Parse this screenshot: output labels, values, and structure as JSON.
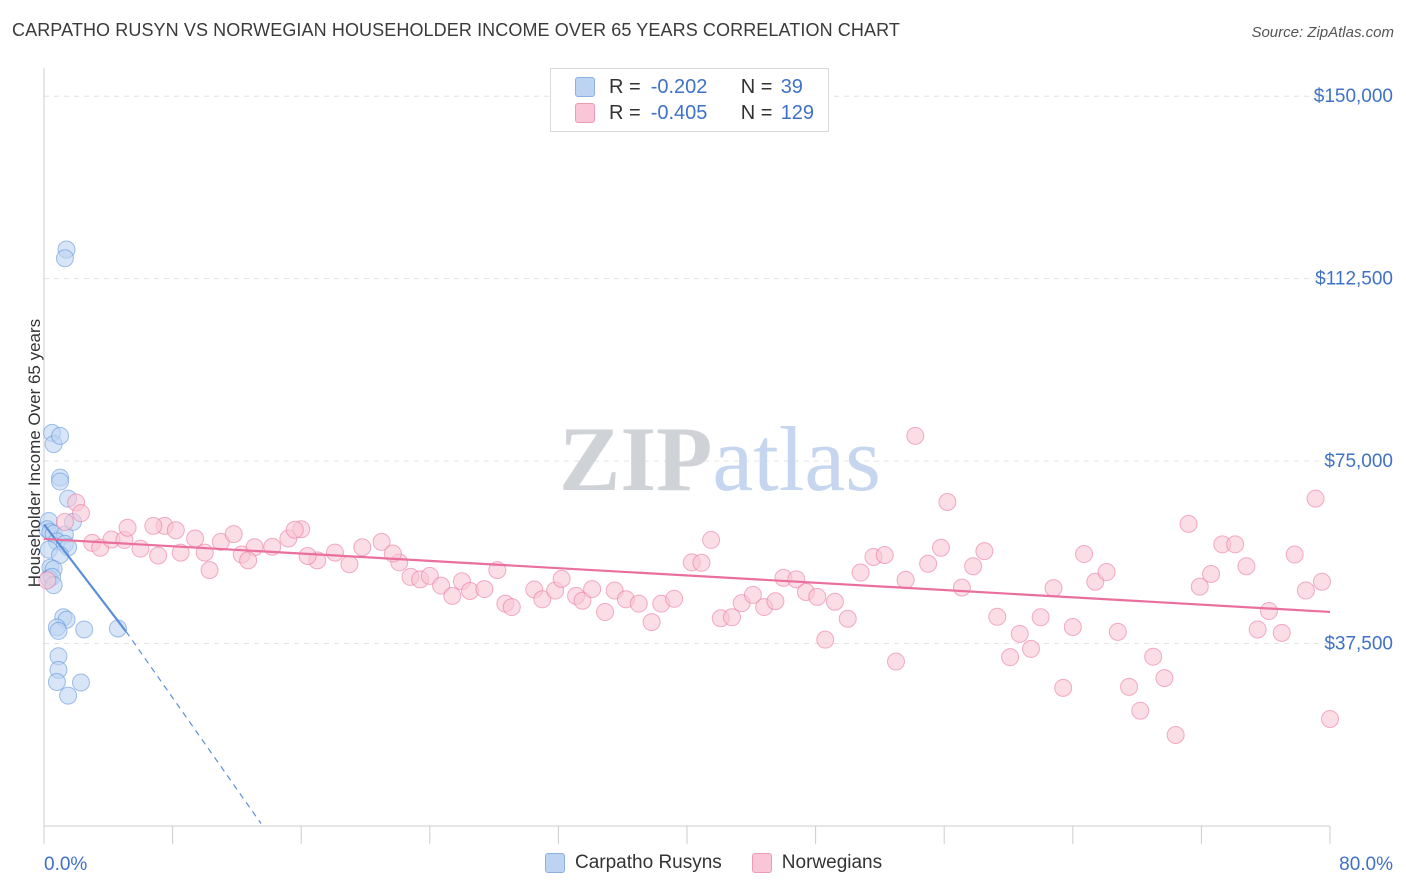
{
  "title": "CARPATHO RUSYN VS NORWEGIAN HOUSEHOLDER INCOME OVER 65 YEARS CORRELATION CHART",
  "source": "Source: ZipAtlas.com",
  "watermark": "ZIPatlas",
  "legend": {
    "rows": [
      {
        "r_label": "R =",
        "r_value": "-0.202",
        "n_label": "N =",
        "n_value": "39",
        "color": "#a9c4ec"
      },
      {
        "r_label": "R =",
        "r_value": "-0.405",
        "n_label": "N =",
        "n_value": "129",
        "color": "#f5b8cb"
      }
    ]
  },
  "bottom_legend": [
    {
      "label": "Carpatho Rusyns",
      "color": "#a9c4ec"
    },
    {
      "label": "Norwegians",
      "color": "#f5b8cb"
    }
  ],
  "chart_data": {
    "type": "scatter",
    "ylabel": "Householder Income Over 65 years",
    "xlabel": "",
    "xlim": [
      0,
      80
    ],
    "ylim": [
      0,
      150000
    ],
    "x_tick_labels": [
      "0.0%",
      "80.0%"
    ],
    "y_tick_labels": [
      "$37,500",
      "$75,000",
      "$112,500",
      "$150,000"
    ],
    "y_ticks": [
      37500,
      75000,
      112500,
      150000
    ],
    "grid": true,
    "series": [
      {
        "name": "Carpatho Rusyns",
        "color": "#5b8fd8",
        "fill": "#bcd3f2",
        "points": [
          [
            1.4,
            118500
          ],
          [
            1.3,
            116700
          ],
          [
            0.5,
            80800
          ],
          [
            0.6,
            78500
          ],
          [
            1.0,
            80200
          ],
          [
            1.0,
            71600
          ],
          [
            1.0,
            70800
          ],
          [
            1.5,
            67300
          ],
          [
            0.3,
            62700
          ],
          [
            0.2,
            61000
          ],
          [
            0.4,
            60400
          ],
          [
            0.6,
            60100
          ],
          [
            1.3,
            59900
          ],
          [
            1.8,
            62500
          ],
          [
            0.8,
            58500
          ],
          [
            1.3,
            58000
          ],
          [
            0.3,
            56800
          ],
          [
            1.5,
            57300
          ],
          [
            1.0,
            55700
          ],
          [
            0.4,
            53100
          ],
          [
            0.6,
            52800
          ],
          [
            0.3,
            50900
          ],
          [
            0.5,
            51200
          ],
          [
            0.6,
            49500
          ],
          [
            1.2,
            42900
          ],
          [
            1.4,
            42400
          ],
          [
            0.8,
            40800
          ],
          [
            0.9,
            40100
          ],
          [
            4.6,
            40600
          ],
          [
            2.5,
            40400
          ],
          [
            0.9,
            34900
          ],
          [
            0.9,
            32100
          ],
          [
            0.8,
            29600
          ],
          [
            2.3,
            29500
          ],
          [
            1.5,
            26800
          ]
        ],
        "trend": {
          "x": [
            0,
            5.1
          ],
          "y": [
            62000,
            40000
          ],
          "dashed_to": [
            13.5,
            500
          ]
        }
      },
      {
        "name": "Norwegians",
        "color": "#e96f9c",
        "fill": "#f8c6d6",
        "points": [
          [
            0.2,
            50500
          ],
          [
            1.3,
            62500
          ],
          [
            2.0,
            66500
          ],
          [
            2.3,
            64300
          ],
          [
            3.0,
            58200
          ],
          [
            3.5,
            57200
          ],
          [
            4.2,
            58900
          ],
          [
            5.0,
            58800
          ],
          [
            6.0,
            57000
          ],
          [
            5.2,
            61300
          ],
          [
            7.5,
            61700
          ],
          [
            8.2,
            60800
          ],
          [
            6.8,
            61700
          ],
          [
            9.4,
            59100
          ],
          [
            7.1,
            55600
          ],
          [
            8.5,
            56200
          ],
          [
            10.0,
            56200
          ],
          [
            11.0,
            58400
          ],
          [
            11.8,
            60000
          ],
          [
            10.3,
            52600
          ],
          [
            12.3,
            55800
          ],
          [
            13.1,
            57300
          ],
          [
            12.7,
            54600
          ],
          [
            14.2,
            57400
          ],
          [
            15.2,
            59100
          ],
          [
            16.0,
            61000
          ],
          [
            15.6,
            60900
          ],
          [
            17.0,
            54600
          ],
          [
            16.4,
            55500
          ],
          [
            18.1,
            56200
          ],
          [
            19.0,
            53800
          ],
          [
            19.8,
            57300
          ],
          [
            21.0,
            58400
          ],
          [
            22.1,
            54200
          ],
          [
            21.7,
            56000
          ],
          [
            22.8,
            51200
          ],
          [
            23.4,
            50700
          ],
          [
            24.0,
            51400
          ],
          [
            24.7,
            49400
          ],
          [
            25.4,
            47300
          ],
          [
            26.0,
            50300
          ],
          [
            26.5,
            48300
          ],
          [
            27.4,
            48700
          ],
          [
            28.2,
            52600
          ],
          [
            28.7,
            45700
          ],
          [
            29.1,
            45000
          ],
          [
            30.5,
            48600
          ],
          [
            31.0,
            46600
          ],
          [
            31.8,
            48400
          ],
          [
            32.2,
            50800
          ],
          [
            33.1,
            47300
          ],
          [
            33.5,
            46300
          ],
          [
            34.1,
            48700
          ],
          [
            34.9,
            44000
          ],
          [
            35.5,
            48400
          ],
          [
            36.2,
            46600
          ],
          [
            37.0,
            45700
          ],
          [
            37.8,
            41900
          ],
          [
            38.4,
            45700
          ],
          [
            39.2,
            46700
          ],
          [
            40.3,
            54200
          ],
          [
            40.9,
            54100
          ],
          [
            41.5,
            58800
          ],
          [
            42.1,
            42700
          ],
          [
            42.8,
            42900
          ],
          [
            43.4,
            45800
          ],
          [
            44.1,
            47500
          ],
          [
            44.8,
            45000
          ],
          [
            45.5,
            46200
          ],
          [
            46.0,
            51000
          ],
          [
            46.8,
            50700
          ],
          [
            47.4,
            48100
          ],
          [
            48.1,
            47100
          ],
          [
            48.6,
            38300
          ],
          [
            49.2,
            46100
          ],
          [
            50.0,
            42600
          ],
          [
            50.8,
            52100
          ],
          [
            51.6,
            55300
          ],
          [
            52.3,
            55700
          ],
          [
            53.0,
            33800
          ],
          [
            53.6,
            50600
          ],
          [
            54.2,
            80200
          ],
          [
            55.0,
            53900
          ],
          [
            55.8,
            57200
          ],
          [
            56.2,
            66600
          ],
          [
            57.1,
            49000
          ],
          [
            57.8,
            53400
          ],
          [
            58.5,
            56500
          ],
          [
            59.3,
            43000
          ],
          [
            60.1,
            34700
          ],
          [
            60.7,
            39500
          ],
          [
            61.4,
            36400
          ],
          [
            62.0,
            42900
          ],
          [
            62.8,
            48900
          ],
          [
            63.4,
            28400
          ],
          [
            64.0,
            40900
          ],
          [
            64.7,
            55900
          ],
          [
            65.4,
            50200
          ],
          [
            66.1,
            52200
          ],
          [
            66.8,
            39900
          ],
          [
            67.5,
            28600
          ],
          [
            68.2,
            23700
          ],
          [
            69.0,
            34800
          ],
          [
            69.7,
            30400
          ],
          [
            70.4,
            18700
          ],
          [
            71.2,
            62100
          ],
          [
            71.9,
            49200
          ],
          [
            72.6,
            51800
          ],
          [
            73.3,
            57900
          ],
          [
            74.1,
            57900
          ],
          [
            74.8,
            53400
          ],
          [
            75.5,
            40400
          ],
          [
            76.2,
            44200
          ],
          [
            77.0,
            39700
          ],
          [
            77.8,
            55800
          ],
          [
            78.5,
            48400
          ],
          [
            79.1,
            67300
          ],
          [
            79.5,
            50200
          ],
          [
            80.0,
            22000
          ]
        ],
        "trend": {
          "x": [
            0,
            80
          ],
          "y": [
            59000,
            44000
          ]
        }
      }
    ]
  }
}
